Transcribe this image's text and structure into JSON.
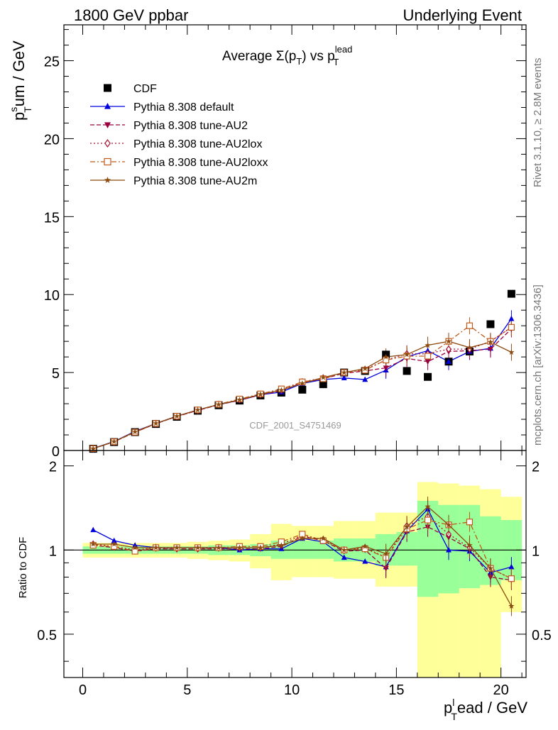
{
  "header": {
    "left": "1800 GeV ppbar",
    "right": "Underlying Event"
  },
  "side_text": {
    "rivet": "Rivet 3.1.10, ≥ 2.8M events",
    "mcplots": "mcplots.cern.ch [arXiv:1306.3436]"
  },
  "chart_data": [
    {
      "type": "line",
      "title_main": "Average Σ(p",
      "title_sub1": "T",
      "title_mid": ") vs p",
      "title_sup": "lead",
      "title_sub2": "T",
      "ylabel_main": "p",
      "ylabel_sup": "s",
      "ylabel_sub": "T",
      "ylabel_rest": "um / GeV",
      "watermark": "CDF_2001_S4751469",
      "xlim": [
        -0.9,
        21.2
      ],
      "ylim": [
        0,
        27.3
      ],
      "yticks": [
        0,
        5,
        10,
        15,
        20,
        25
      ],
      "x": [
        0.5,
        1.5,
        2.5,
        3.5,
        4.5,
        5.5,
        6.5,
        7.5,
        8.5,
        9.5,
        10.5,
        11.5,
        12.5,
        13.5,
        14.5,
        15.5,
        16.5,
        17.5,
        18.5,
        19.5,
        20.5
      ],
      "legend_position": "top-left",
      "series": [
        {
          "name": "CDF",
          "color": "#000000",
          "marker": "square",
          "line": "none",
          "values": [
            0.11,
            0.54,
            1.18,
            1.7,
            2.16,
            2.55,
            2.9,
            3.2,
            3.53,
            3.71,
            3.9,
            4.25,
            5.0,
            5.1,
            6.15,
            5.1,
            4.72,
            5.7,
            6.35,
            8.1,
            10.05
          ]
        },
        {
          "name": "Pythia 8.308 default",
          "color": "#0000dd",
          "marker": "triangle-up",
          "line": "solid",
          "values": [
            0.13,
            0.58,
            1.23,
            1.73,
            2.2,
            2.6,
            2.95,
            3.22,
            3.57,
            3.75,
            4.3,
            4.55,
            4.65,
            4.55,
            5.15,
            6.0,
            6.4,
            5.7,
            6.35,
            6.55,
            8.45
          ]
        },
        {
          "name": "Pythia 8.308 tune-AU2",
          "color": "#99003d",
          "marker": "triangle-down",
          "line": "dashed",
          "values": [
            0.12,
            0.56,
            1.17,
            1.72,
            2.18,
            2.57,
            2.93,
            3.22,
            3.57,
            3.83,
            4.35,
            4.6,
            4.95,
            5.1,
            5.3,
            5.9,
            5.7,
            6.35,
            6.4,
            6.5,
            7.8
          ]
        },
        {
          "name": "Pythia 8.308 tune-AU2lox",
          "color": "#aa1133",
          "marker": "diamond-open",
          "line": "dotted",
          "values": [
            0.12,
            0.56,
            1.18,
            1.73,
            2.18,
            2.58,
            2.95,
            3.27,
            3.58,
            3.88,
            4.4,
            4.65,
            5.0,
            5.2,
            5.8,
            6.2,
            6.2,
            6.5,
            6.5,
            7.0,
            7.9
          ]
        },
        {
          "name": "Pythia 8.308 tune-AU2loxx",
          "color": "#c05a1a",
          "marker": "square-open",
          "line": "dashdot",
          "values": [
            0.12,
            0.56,
            1.17,
            1.73,
            2.2,
            2.6,
            2.96,
            3.3,
            3.63,
            3.95,
            4.4,
            4.6,
            5.0,
            5.15,
            5.8,
            6.05,
            6.05,
            7.0,
            8.0,
            7.0,
            7.9
          ]
        },
        {
          "name": "Pythia 8.308 tune-AU2m",
          "color": "#8b4a0f",
          "marker": "star",
          "line": "solid",
          "values": [
            0.12,
            0.57,
            1.2,
            1.74,
            2.2,
            2.6,
            2.95,
            3.25,
            3.6,
            3.87,
            4.3,
            4.68,
            5.0,
            5.25,
            6.0,
            6.15,
            6.75,
            7.0,
            6.6,
            6.95,
            6.3
          ]
        }
      ]
    },
    {
      "type": "line",
      "ylabel": "Ratio to CDF",
      "xlabel_main": "p",
      "xlabel_sup": "l",
      "xlabel_sub": "T",
      "xlabel_rest": "ead / GeV",
      "xlim": [
        -0.9,
        21.2
      ],
      "ylim": [
        0.35,
        2.27
      ],
      "xticks": [
        0,
        5,
        10,
        15,
        20
      ],
      "yticks": [
        0.5,
        1,
        2
      ],
      "x": [
        0.5,
        1.5,
        2.5,
        3.5,
        4.5,
        5.5,
        6.5,
        7.5,
        8.5,
        9.5,
        10.5,
        11.5,
        12.5,
        13.5,
        14.5,
        15.5,
        16.5,
        17.5,
        18.5,
        19.5,
        20.5
      ],
      "band_edges": [
        0,
        1,
        2,
        3,
        4,
        5,
        6,
        7,
        8,
        9,
        10,
        11,
        12,
        13,
        14,
        15,
        16,
        17,
        18,
        19,
        20,
        21
      ],
      "band_inner": [
        [
          0.97,
          1.03
        ],
        [
          0.97,
          1.03
        ],
        [
          0.97,
          1.03
        ],
        [
          0.97,
          1.03
        ],
        [
          0.97,
          1.03
        ],
        [
          0.97,
          1.03
        ],
        [
          0.96,
          1.04
        ],
        [
          0.96,
          1.04
        ],
        [
          0.95,
          1.05
        ],
        [
          0.93,
          1.08
        ],
        [
          0.93,
          1.08
        ],
        [
          0.93,
          1.08
        ],
        [
          0.91,
          1.1
        ],
        [
          0.91,
          1.1
        ],
        [
          0.88,
          1.14
        ],
        [
          0.88,
          1.16
        ],
        [
          0.68,
          1.5
        ],
        [
          0.7,
          1.45
        ],
        [
          0.73,
          1.45
        ],
        [
          0.75,
          1.32
        ],
        [
          0.78,
          1.28
        ]
      ],
      "band_outer": [
        [
          0.94,
          1.06
        ],
        [
          0.94,
          1.06
        ],
        [
          0.94,
          1.06
        ],
        [
          0.94,
          1.06
        ],
        [
          0.94,
          1.06
        ],
        [
          0.93,
          1.07
        ],
        [
          0.92,
          1.08
        ],
        [
          0.91,
          1.09
        ],
        [
          0.86,
          1.14
        ],
        [
          0.78,
          1.24
        ],
        [
          0.8,
          1.22
        ],
        [
          0.8,
          1.22
        ],
        [
          0.79,
          1.27
        ],
        [
          0.79,
          1.27
        ],
        [
          0.74,
          1.36
        ],
        [
          0.74,
          1.36
        ],
        [
          0.35,
          1.75
        ],
        [
          0.35,
          1.73
        ],
        [
          0.35,
          1.7
        ],
        [
          0.35,
          1.65
        ],
        [
          0.6,
          1.55
        ]
      ],
      "reference": 1,
      "series": [
        {
          "name": "Pythia 8.308 default",
          "color": "#0000dd",
          "marker": "triangle-up",
          "line": "solid",
          "values": [
            1.18,
            1.08,
            1.04,
            1.02,
            1.02,
            1.02,
            1.02,
            1.0,
            1.01,
            1.01,
            1.1,
            1.07,
            0.94,
            0.91,
            0.87,
            1.17,
            1.4,
            1.0,
            0.99,
            0.83,
            0.87
          ]
        },
        {
          "name": "Pythia 8.308 tune-AU2",
          "color": "#99003d",
          "marker": "triangle-down",
          "line": "dashed",
          "values": [
            1.04,
            1.02,
            0.99,
            1.01,
            1.01,
            1.01,
            1.01,
            1.01,
            1.01,
            1.03,
            1.12,
            1.08,
            0.99,
            1.0,
            0.86,
            1.16,
            1.21,
            1.11,
            1.01,
            0.8,
            0.78
          ]
        },
        {
          "name": "Pythia 8.308 tune-AU2lox",
          "color": "#aa1133",
          "marker": "diamond-open",
          "line": "dotted",
          "values": [
            1.05,
            1.03,
            1.0,
            1.02,
            1.01,
            1.01,
            1.02,
            1.02,
            1.02,
            1.05,
            1.13,
            1.09,
            1.0,
            1.02,
            0.94,
            1.22,
            1.32,
            1.14,
            1.02,
            0.86,
            0.79
          ]
        },
        {
          "name": "Pythia 8.308 tune-AU2loxx",
          "color": "#c05a1a",
          "marker": "square-open",
          "line": "dashdot",
          "values": [
            1.04,
            1.03,
            0.99,
            1.02,
            1.02,
            1.02,
            1.02,
            1.03,
            1.03,
            1.07,
            1.14,
            1.08,
            1.0,
            1.01,
            0.94,
            1.19,
            1.28,
            1.23,
            1.26,
            0.86,
            0.79
          ]
        },
        {
          "name": "Pythia 8.308 tune-AU2m",
          "color": "#8b4a0f",
          "marker": "star",
          "line": "solid",
          "values": [
            1.05,
            1.05,
            1.02,
            1.02,
            1.02,
            1.02,
            1.02,
            1.02,
            1.02,
            1.04,
            1.1,
            1.1,
            1.0,
            1.03,
            0.97,
            1.21,
            1.43,
            1.23,
            1.04,
            0.86,
            0.63
          ]
        }
      ]
    }
  ]
}
